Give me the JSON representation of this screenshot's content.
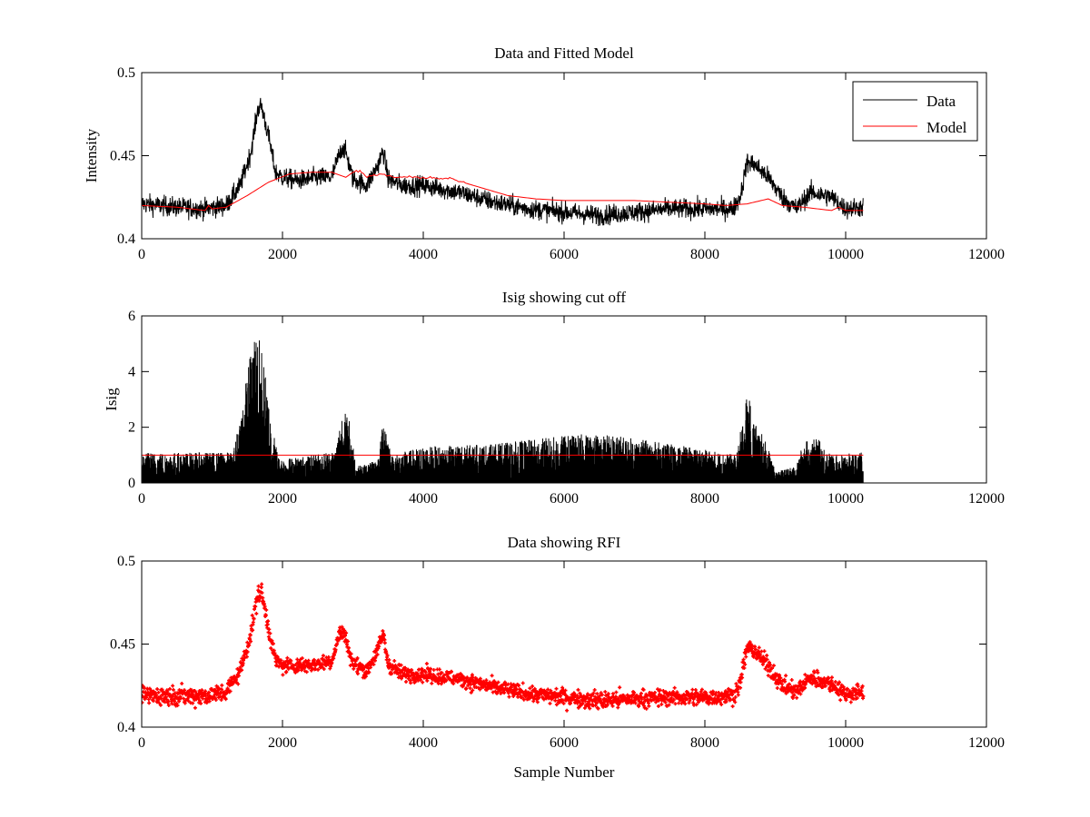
{
  "chart_data": [
    {
      "type": "line",
      "title": "Data and Fitted Model",
      "xlabel": "",
      "ylabel": "Intensity",
      "xlim": [
        0,
        12000
      ],
      "ylim": [
        0.4,
        0.5
      ],
      "xticks": [
        0,
        2000,
        4000,
        6000,
        8000,
        10000,
        12000
      ],
      "xtick_labels": [
        "0",
        "2000",
        "4000",
        "6000",
        "8000",
        "10000",
        "12000"
      ],
      "yticks": [
        0.4,
        0.45,
        0.5
      ],
      "ytick_labels": [
        "0.4",
        "0.45",
        "0.5"
      ],
      "grid": false,
      "legend_position": "top-right",
      "series": [
        {
          "name": "Data",
          "color": "#000000",
          "style": "line",
          "noise": 0.006,
          "x": [
            0,
            500,
            900,
            1200,
            1400,
            1550,
            1650,
            1700,
            1800,
            1900,
            2000,
            2200,
            2500,
            2700,
            2800,
            2850,
            2900,
            3000,
            3200,
            3350,
            3430,
            3500,
            3700,
            4000,
            4500,
            5000,
            5500,
            6000,
            6500,
            7000,
            7500,
            8000,
            8400,
            8500,
            8600,
            8700,
            8900,
            9100,
            9300,
            9500,
            9800,
            10000,
            10250
          ],
          "y": [
            0.421,
            0.419,
            0.418,
            0.42,
            0.432,
            0.452,
            0.478,
            0.48,
            0.462,
            0.44,
            0.437,
            0.435,
            0.437,
            0.437,
            0.45,
            0.455,
            0.452,
            0.436,
            0.432,
            0.444,
            0.453,
            0.436,
            0.432,
            0.432,
            0.428,
            0.422,
            0.418,
            0.416,
            0.414,
            0.416,
            0.418,
            0.418,
            0.418,
            0.425,
            0.446,
            0.445,
            0.437,
            0.425,
            0.418,
            0.428,
            0.425,
            0.418,
            0.419
          ]
        },
        {
          "name": "Model",
          "color": "#ff0000",
          "style": "line",
          "noise": 0,
          "x": [
            0,
            500,
            900,
            950,
            1000,
            1200,
            1500,
            1800,
            2100,
            2400,
            2700,
            2900,
            3000,
            3100,
            3200,
            3400,
            3600,
            4000,
            4400,
            4800,
            5200,
            5600,
            6000,
            6500,
            7000,
            7500,
            8000,
            8300,
            8600,
            8900,
            9100,
            9400,
            9800,
            9900,
            10000,
            10250
          ],
          "y": [
            0.42,
            0.419,
            0.417,
            0.42,
            0.418,
            0.419,
            0.426,
            0.434,
            0.439,
            0.44,
            0.44,
            0.437,
            0.44,
            0.441,
            0.437,
            0.439,
            0.437,
            0.437,
            0.436,
            0.431,
            0.426,
            0.424,
            0.423,
            0.423,
            0.423,
            0.422,
            0.421,
            0.42,
            0.421,
            0.424,
            0.42,
            0.419,
            0.417,
            0.419,
            0.417,
            0.417
          ]
        }
      ]
    },
    {
      "type": "line",
      "title": "Isig showing cut off",
      "xlabel": "",
      "ylabel": "Isig",
      "xlim": [
        0,
        12000
      ],
      "ylim": [
        0,
        6
      ],
      "xticks": [
        0,
        2000,
        4000,
        6000,
        8000,
        10000,
        12000
      ],
      "xtick_labels": [
        "0",
        "2000",
        "4000",
        "6000",
        "8000",
        "10000",
        "12000"
      ],
      "yticks": [
        0,
        2,
        4,
        6
      ],
      "ytick_labels": [
        "0",
        "2",
        "4",
        "6"
      ],
      "grid": false,
      "series": [
        {
          "color": "#000000",
          "style": "bars",
          "x": [
            0,
            1300,
            1450,
            1600,
            1700,
            1850,
            1950,
            2100,
            2400,
            2750,
            2850,
            2950,
            3050,
            3350,
            3450,
            3550,
            4000,
            5000,
            6000,
            6500,
            7000,
            7500,
            8000,
            8450,
            8600,
            8700,
            8900,
            9000,
            9300,
            9400,
            9600,
            9800,
            10250
          ],
          "y": [
            1.1,
            1.1,
            3.2,
            5.6,
            5.0,
            2.1,
            0.9,
            0.9,
            1.0,
            1.2,
            2.7,
            2.3,
            0.6,
            0.8,
            2.6,
            1.0,
            1.3,
            1.4,
            1.7,
            1.8,
            1.6,
            1.4,
            1.2,
            1.0,
            3.3,
            2.3,
            1.3,
            0.4,
            0.6,
            1.5,
            1.6,
            1.0,
            1.1
          ]
        },
        {
          "color": "#ff0000",
          "style": "line",
          "x": [
            0,
            10250
          ],
          "y": [
            1.0,
            1.0
          ]
        }
      ]
    },
    {
      "type": "scatter",
      "title": "Data showing RFI",
      "xlabel": "Sample Number",
      "ylabel": "",
      "xlim": [
        0,
        12000
      ],
      "ylim": [
        0.4,
        0.5
      ],
      "xticks": [
        0,
        2000,
        4000,
        6000,
        8000,
        10000,
        12000
      ],
      "xtick_labels": [
        "0",
        "2000",
        "4000",
        "6000",
        "8000",
        "10000",
        "12000"
      ],
      "yticks": [
        0.4,
        0.45,
        0.5
      ],
      "ytick_labels": [
        "0.4",
        "0.45",
        "0.5"
      ],
      "grid": false,
      "series": [
        {
          "color": "#ff0000",
          "style": "band",
          "x": [
            0,
            500,
            900,
            1200,
            1400,
            1550,
            1650,
            1700,
            1800,
            1900,
            2000,
            2200,
            2500,
            2700,
            2800,
            2850,
            2900,
            3000,
            3200,
            3350,
            3430,
            3500,
            3700,
            4000,
            4500,
            5000,
            5500,
            6000,
            6500,
            7000,
            7500,
            8000,
            8400,
            8500,
            8600,
            8700,
            8900,
            9100,
            9300,
            9500,
            9800,
            10000,
            10250
          ],
          "y": [
            0.419,
            0.419,
            0.419,
            0.421,
            0.434,
            0.456,
            0.48,
            0.481,
            0.46,
            0.44,
            0.437,
            0.437,
            0.438,
            0.44,
            0.455,
            0.458,
            0.453,
            0.438,
            0.434,
            0.446,
            0.456,
            0.438,
            0.432,
            0.432,
            0.429,
            0.424,
            0.42,
            0.418,
            0.416,
            0.417,
            0.418,
            0.418,
            0.419,
            0.426,
            0.448,
            0.446,
            0.437,
            0.425,
            0.421,
            0.43,
            0.426,
            0.42,
            0.421
          ],
          "spread": [
            0.0055,
            0.0055,
            0.0055,
            0.0055,
            0.005,
            0.005,
            0.006,
            0.006,
            0.005,
            0.0045,
            0.0045,
            0.0045,
            0.0045,
            0.0045,
            0.0045,
            0.0045,
            0.0045,
            0.0045,
            0.0045,
            0.0045,
            0.0045,
            0.0045,
            0.0045,
            0.0045,
            0.0045,
            0.0045,
            0.0045,
            0.005,
            0.0055,
            0.005,
            0.005,
            0.005,
            0.005,
            0.005,
            0.005,
            0.005,
            0.005,
            0.005,
            0.005,
            0.005,
            0.005,
            0.005,
            0.005
          ]
        }
      ]
    }
  ]
}
